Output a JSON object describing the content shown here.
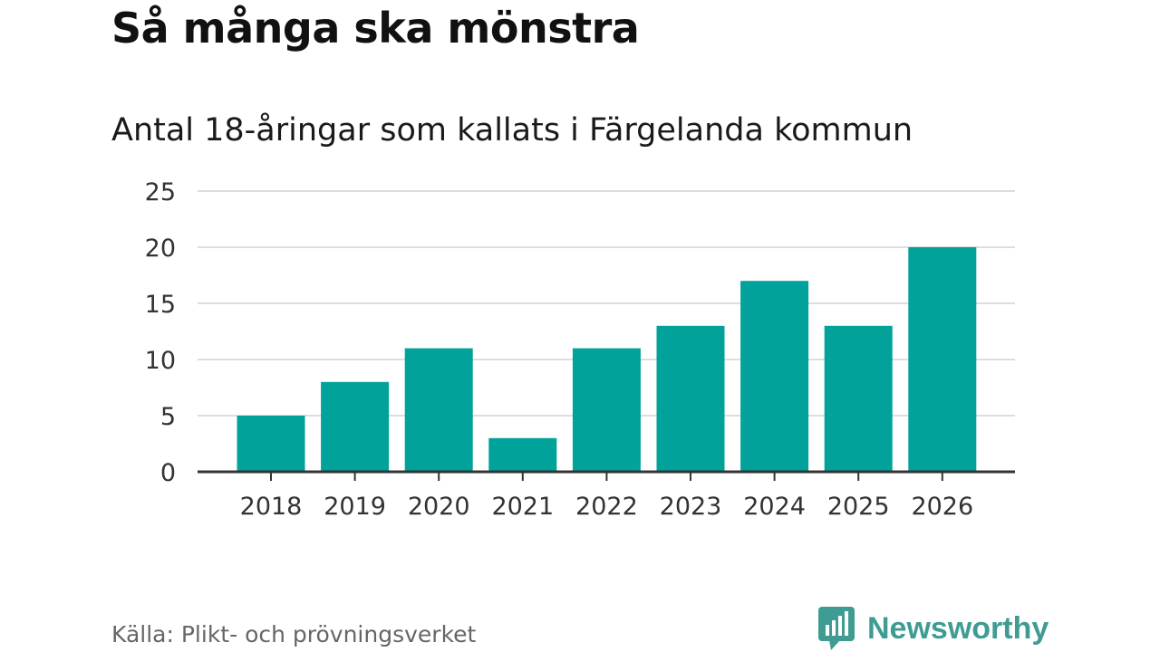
{
  "chart_data": {
    "type": "bar",
    "title": "Så många ska mönstra",
    "subtitle": "Antal 18-åringar som kallats i Färgelanda kommun",
    "xlabel": "",
    "ylabel": "",
    "categories": [
      "2018",
      "2019",
      "2020",
      "2021",
      "2022",
      "2023",
      "2024",
      "2025",
      "2026"
    ],
    "values": [
      5,
      8,
      11,
      3,
      11,
      13,
      17,
      13,
      20
    ],
    "ylim": [
      0,
      25
    ],
    "yticks": [
      0,
      5,
      10,
      15,
      20,
      25
    ],
    "grid": true,
    "legend": "none",
    "bar_color": "#00a29a"
  },
  "footer": {
    "source": "Källa: Plikt- och prövningsverket",
    "brand": "Newsworthy",
    "brand_icon": "bar-chart-speech-bubble-icon",
    "brand_color": "#3f9c93"
  }
}
